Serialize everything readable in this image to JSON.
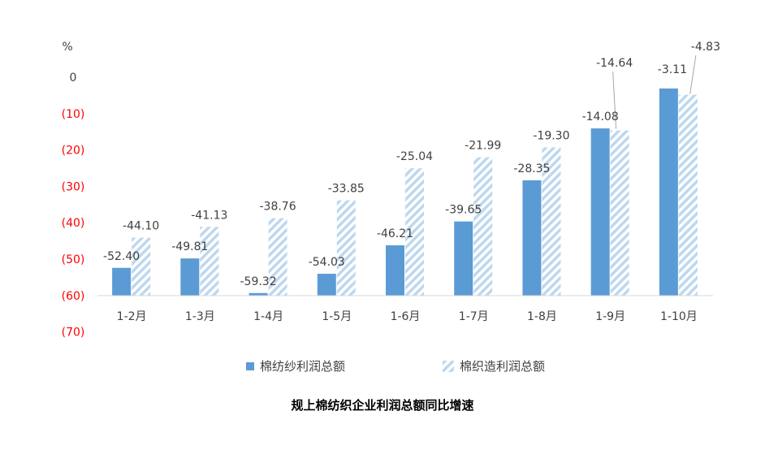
{
  "chart_data": {
    "type": "bar",
    "title": "规上棉纺织企业利润总额同比增速",
    "unit_label": "%",
    "categories": [
      "1-2月",
      "1-3月",
      "1-4月",
      "1-5月",
      "1-6月",
      "1-7月",
      "1-8月",
      "1-9月",
      "1-10月"
    ],
    "series": [
      {
        "name": "棉纺纱利润总额",
        "values": [
          -52.4,
          -49.81,
          -59.32,
          -54.03,
          -46.21,
          -39.65,
          -28.35,
          -14.08,
          -3.11
        ],
        "labels": [
          "-52.40",
          "-49.81",
          "-59.32",
          "-54.03",
          "-46.21",
          "-39.65",
          "-28.35",
          "-14.08",
          "-3.11"
        ],
        "color": "#5b9bd5",
        "pattern": "solid"
      },
      {
        "name": "棉织造利润总额",
        "values": [
          -44.1,
          -41.13,
          -38.76,
          -33.85,
          -25.04,
          -21.99,
          -19.3,
          -14.64,
          -4.83
        ],
        "labels": [
          "-44.10",
          "-41.13",
          "-38.76",
          "-33.85",
          "-25.04",
          "-21.99",
          "-19.30",
          "-14.64",
          "-4.83"
        ],
        "color": "#bdd7ee",
        "pattern": "diagonal-stripes"
      }
    ],
    "y_ticks": [
      0,
      -10,
      -20,
      -30,
      -40,
      -50,
      -60,
      -70
    ],
    "y_tick_labels": [
      "0",
      "(10)",
      "(20)",
      "(30)",
      "(40)",
      "(50)",
      "(60)",
      "(70)"
    ],
    "ylim": [
      -70,
      0
    ],
    "colors": {
      "zero_tick": "#404040",
      "negative_ticks": "#ff0000",
      "axis_line": "#d9d9d9"
    },
    "grid": false,
    "legend_position": "bottom"
  }
}
